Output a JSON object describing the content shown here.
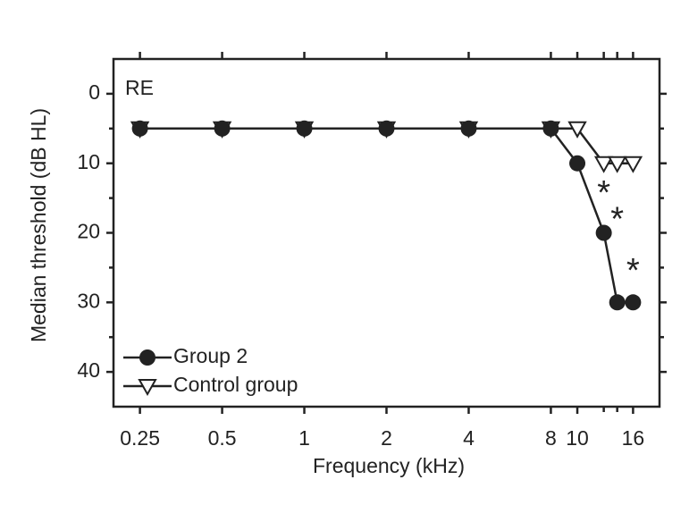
{
  "chart_data": {
    "type": "line",
    "panel_label": "RE",
    "xlabel": "Frequency (kHz)",
    "ylabel": "Median threshold (dB HL)",
    "xscale": "log",
    "xlim": [
      0.2,
      20
    ],
    "xticks": [
      0.25,
      0.5,
      1,
      2,
      4,
      8,
      10,
      16
    ],
    "xminor": [
      12.5,
      14
    ],
    "ylim": [
      -5,
      45
    ],
    "yinverted": true,
    "yticks": [
      0,
      10,
      20,
      30,
      40
    ],
    "yminor": [
      5,
      15,
      25,
      35
    ],
    "x": [
      0.25,
      0.5,
      1,
      2,
      4,
      8,
      10,
      12.5,
      14,
      16
    ],
    "series": [
      {
        "name": "Group 2",
        "color": "#222222",
        "marker": "circle",
        "values": [
          5,
          5,
          5,
          5,
          5,
          5,
          10,
          20,
          30,
          30
        ]
      },
      {
        "name": "Control group",
        "color": "#222222",
        "marker": "triangle-down",
        "values": [
          5,
          5,
          5,
          5,
          5,
          5,
          5,
          10,
          10,
          10
        ]
      }
    ],
    "legend": "lower left",
    "annotations": [
      {
        "text": "*",
        "x": 12.5,
        "y": 13.5
      },
      {
        "text": "*",
        "x": 14,
        "y": 17.3
      },
      {
        "text": "*",
        "x": 16,
        "y": 24.7
      }
    ]
  }
}
